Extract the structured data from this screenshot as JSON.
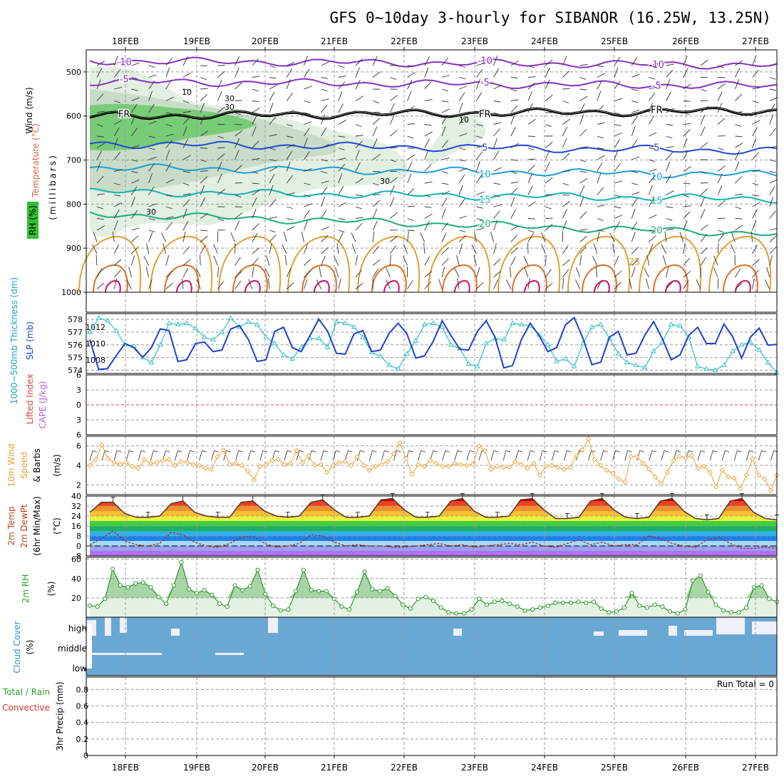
{
  "title": "GFS 0~10day 3-hourly for SIBANOR (16.25W, 13.25N)",
  "dates": [
    "18FEB",
    "19FEB",
    "20FEB",
    "21FEB",
    "22FEB",
    "23FEB",
    "24FEB",
    "25FEB",
    "26FEB",
    "27FEB"
  ],
  "panel_labels": {
    "upper_wind": "Wind (m/s)",
    "upper_temp": "Temperature (°C)",
    "upper_rh": "RH (%)",
    "upper_axis": "(millibars)",
    "thickness": "1000~500mb Thickness (dm)",
    "slp": "SLP (mb)",
    "lifted": "Lifted Index",
    "cape": "CAPE (J/kg)",
    "wind10_a": "10m Wind",
    "wind10_b": "Speed",
    "wind10_c": "& Barbs",
    "wind10_unit": "(m/s)",
    "t2_a": "2m Temp",
    "t2_b": "2m DewPt",
    "t2_c": "(6hr Min/Max)",
    "t2_unit": "(°C)",
    "rh2_a": "2m RH",
    "rh2_unit": "(%)",
    "cloud_a": "Cloud Cover",
    "cloud_unit": "(%)",
    "precip_a": "Total / Rain",
    "precip_b": "Convective",
    "precip_c": "3hr Precip (mm)",
    "run_total": "Run Total = 0"
  },
  "colors": {
    "temperature": "#e0a030",
    "wind10": "#e8a030",
    "thickness": "#30c0c0",
    "slp": "#2040d0",
    "rh": "#30b030",
    "cloud": "#6aa8d4",
    "lifted": "#e04040",
    "cape": "#b060e0",
    "precip_total": "#30a030",
    "precip_conv": "#e03030"
  },
  "chart_data": [
    {
      "type": "heatmap",
      "title": "Upper-air cross section",
      "ylabel": "millibars",
      "y_ticks": [
        500,
        600,
        700,
        800,
        900,
        1000
      ],
      "ylim": [
        450,
        1000
      ],
      "isotherms": [
        {
          "label": "-10",
          "pressure": 475,
          "color": "#8a2fc0"
        },
        {
          "label": "-5",
          "pressure": 522,
          "color": "#8a2fc0"
        },
        {
          "label": "FR",
          "pressure": 602,
          "color": "#000000"
        },
        {
          "label": "5",
          "pressure": 663,
          "color": "#2048d8"
        },
        {
          "label": "10",
          "pressure": 717,
          "color": "#1e9ed8"
        },
        {
          "label": "15",
          "pressure": 772,
          "color": "#12b4b4"
        },
        {
          "label": "20",
          "pressure": 822,
          "color": "#1aae7a"
        }
      ],
      "rh_contour_labels": [
        "10",
        "30",
        "30",
        "10",
        "30",
        "30"
      ],
      "low_level_temp_label": "25"
    },
    {
      "type": "line",
      "title": "Thickness / SLP",
      "series": [
        {
          "name": "1000~500mb Thickness (dm)",
          "axis": "left",
          "ticks": [
            574,
            575,
            576,
            577,
            578
          ],
          "values": [
            577.0,
            578.1,
            577.9,
            577.1,
            576.0,
            575.9,
            575.0,
            574.6,
            576.0,
            577.7,
            577.6,
            577.7,
            577.3,
            576.6,
            576.4,
            577.0,
            578.1,
            577.4,
            577.8,
            577.6,
            576.6,
            576.1,
            575.2,
            574.9,
            575.8,
            576.5,
            576.5,
            575.8,
            577.8,
            577.7,
            577.4,
            576.6,
            575.4,
            575.1,
            574.4,
            574.1,
            575.3,
            576.3,
            577.6,
            577.7,
            577.4,
            576.0,
            575.7,
            574.5,
            574.3,
            576.1,
            576.5,
            576.4,
            577.7,
            577.6,
            577.5,
            576.8,
            576.0,
            574.7,
            574.9,
            574.3,
            576.1,
            577.4,
            577.6,
            576.5,
            575.3,
            574.6,
            574.4,
            574.2,
            575.5,
            576.2,
            577.6,
            577.5,
            576.6,
            574.3,
            574.1,
            574.0,
            574.4,
            575.5,
            576.0,
            576.2,
            575.6,
            574.6,
            573.8
          ]
        },
        {
          "name": "SLP (mb)",
          "axis": "right",
          "ticks": [
            1008,
            1010,
            1012
          ],
          "values": [
            1010.5,
            1006.8,
            1006.9,
            1008.5,
            1010.0,
            1009.5,
            1008.3,
            1009.5,
            1011.8,
            1011.6,
            1007.8,
            1008.0,
            1010.0,
            1010.2,
            1009.0,
            1009.2,
            1011.8,
            1012.2,
            1010.5,
            1007.8,
            1008.0,
            1011.5,
            1012.0,
            1009.5,
            1009.0,
            1011.0,
            1013.0,
            1011.5,
            1008.8,
            1008.7,
            1011.2,
            1011.6,
            1009.0,
            1009.2,
            1011.3,
            1012.5,
            1011.2,
            1008.2,
            1008.5,
            1010.3,
            1012.8,
            1011.0,
            1009.3,
            1009.2,
            1011.5,
            1012.8,
            1010.8,
            1007.0,
            1007.3,
            1010.5,
            1012.5,
            1011.0,
            1009.0,
            1009.5,
            1012.3,
            1013.2,
            1010.6,
            1007.4,
            1007.7,
            1010.8,
            1011.5,
            1008.6,
            1008.8,
            1011.0,
            1012.7,
            1010.6,
            1008.0,
            1008.6,
            1011.0,
            1012.0,
            1010.0,
            1010.0,
            1012.4,
            1010.8,
            1008.2,
            1010.8,
            1011.9,
            1009.8,
            1009.9
          ]
        }
      ]
    },
    {
      "type": "line",
      "title": "Lifted Index / CAPE",
      "y_ticks": [
        -6,
        -3,
        0,
        3,
        6
      ],
      "ylim": [
        6,
        -6
      ],
      "series": [
        {
          "name": "Lifted Index",
          "values": []
        }
      ]
    },
    {
      "type": "line",
      "title": "10m Wind Speed & Barbs",
      "ylabel": "(m/s)",
      "y_ticks": [
        2,
        4,
        6
      ],
      "ylim": [
        1,
        7
      ],
      "series": [
        {
          "name": "10m Wind Speed",
          "values": [
            4.0,
            4.6,
            6.1,
            4.7,
            4.3,
            4.1,
            4.3,
            3.9,
            3.7,
            4.6,
            4.2,
            4.3,
            4.5,
            4.6,
            4.0,
            4.4,
            4.3,
            4.1,
            4.0,
            3.7,
            3.6,
            4.9,
            5.6,
            4.1,
            4.2,
            4.0,
            3.4,
            2.5,
            3.9,
            4.1,
            4.5,
            4.6,
            4.1,
            4.2,
            5.5,
            4.3,
            5.0,
            4.0,
            4.1,
            3.3,
            4.0,
            4.3,
            4.4,
            4.0,
            4.9,
            4.0,
            3.5,
            3.9,
            4.1,
            4.4,
            5.2,
            6.3,
            4.7,
            3.1,
            4.1,
            3.9,
            4.5,
            4.2,
            3.9,
            3.9,
            4.2,
            4.1,
            4.0,
            4.1,
            6.0,
            5.5,
            3.6,
            3.9,
            3.8,
            3.8,
            4.4,
            4.1,
            3.7,
            4.2,
            3.0,
            3.9,
            4.0,
            3.8,
            3.6,
            3.8,
            5.0,
            5.6,
            6.7,
            4.6,
            4.0,
            3.5,
            3.2,
            2.6,
            2.3,
            4.9,
            4.9,
            4.2,
            3.6,
            2.8,
            2.1,
            3.3,
            4.5,
            4.9,
            4.8,
            5.0,
            3.7,
            3.9,
            3.3,
            1.8,
            3.5,
            2.8,
            2.7,
            1.6,
            3.0,
            4.7,
            3.0,
            2.6,
            1.4,
            3.0
          ]
        }
      ]
    },
    {
      "type": "area",
      "title": "2m Temp / 2m DewPt (6hr Min/Max)",
      "ylabel": "(°C)",
      "y_ticks": [
        -8,
        0,
        8,
        16,
        24,
        32,
        40
      ],
      "ylim": [
        -8,
        40
      ],
      "series": [
        {
          "name": "2m Temp",
          "values": [
            27,
            35,
            35,
            26,
            23,
            23,
            24,
            34,
            36,
            27,
            24,
            23,
            23,
            35,
            36,
            28,
            24,
            23,
            24,
            35,
            37,
            29,
            23,
            23,
            24,
            37,
            38,
            29,
            23,
            23,
            24,
            36,
            38,
            28,
            23,
            23,
            24,
            37,
            38,
            29,
            22,
            22,
            23,
            36,
            38,
            29,
            23,
            22,
            23,
            36,
            38,
            28,
            22,
            21,
            22,
            36,
            38,
            27,
            22,
            21
          ]
        },
        {
          "name": "2m DewPt",
          "values": [
            1,
            6,
            12,
            4,
            1,
            0,
            2,
            11,
            9,
            3,
            0,
            -1,
            2,
            7,
            8,
            2,
            -1,
            0,
            2,
            9,
            8,
            3,
            0,
            1,
            0,
            0,
            -1,
            -1,
            0,
            1,
            2,
            0,
            1,
            -1,
            0,
            1,
            2,
            1,
            3,
            0,
            -1,
            2,
            5,
            1,
            3,
            0,
            1,
            1,
            8,
            6,
            2,
            0,
            -1,
            5,
            7,
            2,
            -2,
            -2,
            -1,
            -2
          ]
        }
      ]
    },
    {
      "type": "area",
      "title": "2m RH",
      "ylabel": "(%)",
      "y_ticks": [
        20,
        40,
        60
      ],
      "ylim": [
        0,
        62
      ],
      "series": [
        {
          "name": "2m RH",
          "values": [
            12,
            11,
            19,
            50,
            33,
            31,
            35,
            36,
            31,
            21,
            14,
            33,
            57,
            29,
            25,
            28,
            23,
            14,
            11,
            33,
            28,
            32,
            49,
            24,
            12,
            7,
            8,
            27,
            49,
            28,
            27,
            27,
            19,
            11,
            8,
            26,
            47,
            29,
            27,
            30,
            22,
            13,
            9,
            19,
            21,
            17,
            10,
            5,
            4,
            4,
            8,
            19,
            13,
            16,
            17,
            14,
            11,
            7,
            8,
            10,
            12,
            15,
            15,
            15,
            16,
            15,
            16,
            9,
            5,
            6,
            10,
            25,
            12,
            10,
            13,
            11,
            6,
            4,
            8,
            38,
            43,
            26,
            13,
            7,
            5,
            5,
            10,
            31,
            33,
            19,
            16
          ]
        }
      ]
    },
    {
      "type": "area",
      "title": "Cloud Cover",
      "ylabel": "(%)",
      "categories": [
        "high",
        "middle",
        "low"
      ]
    },
    {
      "type": "bar",
      "title": "3hr Precip (mm)",
      "ylabel": "3hr Precip (mm)",
      "y_ticks": [
        0,
        0.2,
        0.4,
        0.6,
        0.8
      ],
      "ylim": [
        0,
        0.95
      ],
      "series": [
        {
          "name": "Total / Rain",
          "values": []
        },
        {
          "name": "Convective",
          "values": []
        }
      ]
    }
  ]
}
